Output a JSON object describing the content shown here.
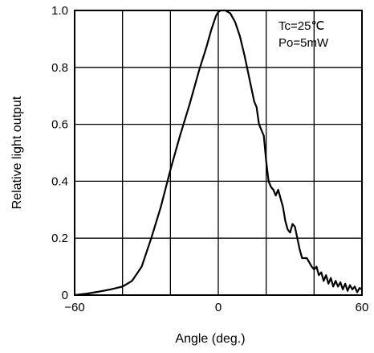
{
  "chart_data": {
    "type": "line",
    "title": "",
    "xlabel": "Angle (deg.)",
    "ylabel": "Relative light output",
    "xlim": [
      -60,
      60
    ],
    "ylim": [
      0,
      1.0
    ],
    "x_ticks": [
      -60,
      0,
      60
    ],
    "x_tick_labels": [
      "−60",
      "0",
      "60"
    ],
    "y_ticks": [
      0,
      0.2,
      0.4,
      0.6,
      0.8,
      1.0
    ],
    "y_tick_labels": [
      "0",
      "0.2",
      "0.4",
      "0.6",
      "0.8",
      "1.0"
    ],
    "grid": true,
    "grid_x": [
      -60,
      -40,
      -20,
      0,
      20,
      40,
      60
    ],
    "annotations": [
      "Tc=25℃",
      "Po=5mW"
    ],
    "series": [
      {
        "x": [
          -60,
          -55,
          -50,
          -45,
          -40,
          -36,
          -32,
          -28,
          -24,
          -20,
          -16,
          -12,
          -8,
          -5,
          -3,
          -1,
          0,
          1,
          3,
          5,
          7,
          9,
          11,
          13,
          15,
          16,
          17,
          18,
          19,
          20,
          21,
          22,
          23,
          24,
          25,
          26,
          27,
          28,
          29,
          30,
          31,
          32,
          33,
          34,
          35,
          37,
          39,
          40,
          41,
          42,
          43,
          44,
          45,
          46,
          47,
          48,
          49,
          50,
          51,
          52,
          53,
          54,
          55,
          56,
          57,
          58,
          59,
          60
        ],
        "y": [
          0.0,
          0.005,
          0.012,
          0.02,
          0.03,
          0.05,
          0.1,
          0.2,
          0.31,
          0.44,
          0.56,
          0.67,
          0.79,
          0.87,
          0.93,
          0.98,
          0.995,
          1.0,
          1.0,
          0.99,
          0.96,
          0.91,
          0.84,
          0.76,
          0.68,
          0.66,
          0.6,
          0.58,
          0.56,
          0.47,
          0.4,
          0.38,
          0.37,
          0.35,
          0.37,
          0.34,
          0.31,
          0.26,
          0.23,
          0.22,
          0.25,
          0.24,
          0.2,
          0.16,
          0.13,
          0.13,
          0.1,
          0.09,
          0.1,
          0.07,
          0.08,
          0.05,
          0.07,
          0.04,
          0.06,
          0.03,
          0.05,
          0.03,
          0.045,
          0.02,
          0.04,
          0.015,
          0.035,
          0.02,
          0.03,
          0.01,
          0.025,
          0.02
        ]
      }
    ]
  }
}
